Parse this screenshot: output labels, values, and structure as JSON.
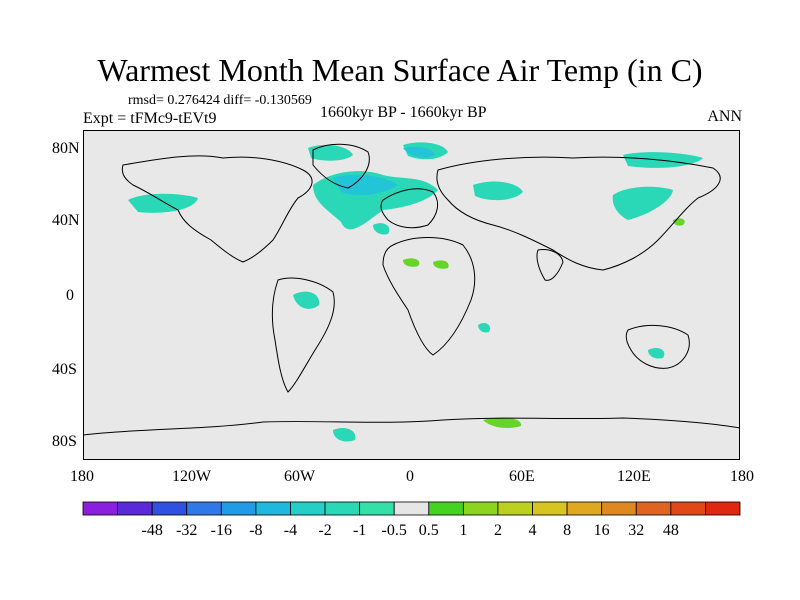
{
  "title": "Warmest Month Mean Surface Air Temp (in C)",
  "stats": "rmsd= 0.276424 diff= -0.130569",
  "experiment": "Expt = tFMc9-tEVt9",
  "period": "1660kyr BP - 1660kyr BP",
  "season": "ANN",
  "map": {
    "background_color": "#e8e8e8",
    "coastline_color": "#000000",
    "lat_ticks": [
      "80N",
      "40N",
      "0",
      "40S",
      "80S"
    ],
    "lon_ticks": [
      "180",
      "120W",
      "60W",
      "0",
      "60E",
      "120E",
      "180"
    ]
  },
  "colorbar": {
    "colors": [
      "#8a1fe0",
      "#5a2ad8",
      "#3050e0",
      "#2f78e8",
      "#1f9be8",
      "#20b8e0",
      "#26cfc6",
      "#2ad8b8",
      "#32e0a8",
      "#e6e6e6",
      "#44d420",
      "#8cd420",
      "#bcd020",
      "#d8c420",
      "#e0a820",
      "#e08820",
      "#e06420",
      "#e04818",
      "#e02810"
    ],
    "labels": [
      "-48",
      "-32",
      "-16",
      "-8",
      "-4",
      "-2",
      "-1",
      "-0.5",
      "0.5",
      "1",
      "2",
      "4",
      "8",
      "16",
      "32",
      "48"
    ]
  },
  "anomaly_fill": {
    "cool": "#2ad8b8",
    "cool_strong": "#22c4d8",
    "warm": "#66d428"
  }
}
